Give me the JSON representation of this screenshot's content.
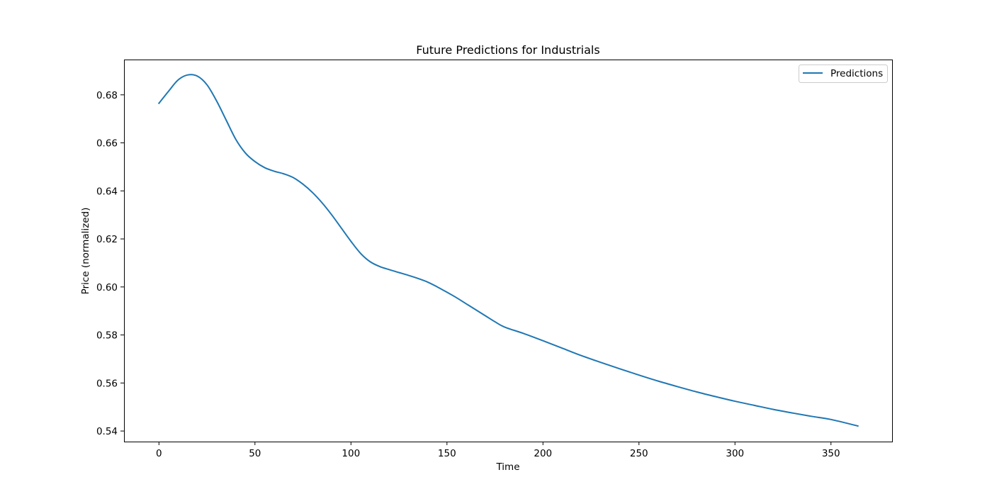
{
  "chart_data": {
    "type": "line",
    "title": "Future Predictions for Industrials",
    "xlabel": "Time",
    "ylabel": "Price (normalized)",
    "xlim": [
      -18.2,
      382.2
    ],
    "ylim": [
      0.5356,
      0.6947
    ],
    "xticks": [
      0,
      50,
      100,
      150,
      200,
      250,
      300,
      350
    ],
    "yticks": [
      0.54,
      0.56,
      0.58,
      0.6,
      0.62,
      0.64,
      0.66,
      0.68
    ],
    "ytick_labels": [
      "0.54",
      "0.56",
      "0.58",
      "0.60",
      "0.62",
      "0.64",
      "0.66",
      "0.68"
    ],
    "grid": false,
    "legend_position": "top-right",
    "series": [
      {
        "name": "Predictions",
        "color": "#1f77b4",
        "x": [
          0,
          5,
          10,
          15,
          20,
          25,
          30,
          35,
          40,
          45,
          50,
          55,
          60,
          65,
          70,
          75,
          80,
          85,
          90,
          95,
          100,
          105,
          110,
          115,
          120,
          125,
          130,
          135,
          140,
          145,
          150,
          155,
          160,
          165,
          170,
          175,
          180,
          190,
          200,
          210,
          220,
          230,
          240,
          250,
          260,
          270,
          280,
          290,
          300,
          310,
          320,
          330,
          340,
          350,
          364
        ],
        "y": [
          0.6765,
          0.6815,
          0.6862,
          0.6883,
          0.6878,
          0.6842,
          0.6775,
          0.6695,
          0.6615,
          0.6558,
          0.6522,
          0.6497,
          0.6482,
          0.6471,
          0.6455,
          0.6428,
          0.6393,
          0.635,
          0.63,
          0.6245,
          0.619,
          0.614,
          0.6105,
          0.6085,
          0.6072,
          0.606,
          0.6048,
          0.6035,
          0.602,
          0.6,
          0.5978,
          0.5955,
          0.593,
          0.5905,
          0.588,
          0.5855,
          0.5833,
          0.5806,
          0.5776,
          0.5745,
          0.5714,
          0.5686,
          0.5659,
          0.5633,
          0.5608,
          0.5585,
          0.5563,
          0.5543,
          0.5524,
          0.5507,
          0.549,
          0.5475,
          0.5461,
          0.5448,
          0.5421
        ]
      }
    ]
  }
}
